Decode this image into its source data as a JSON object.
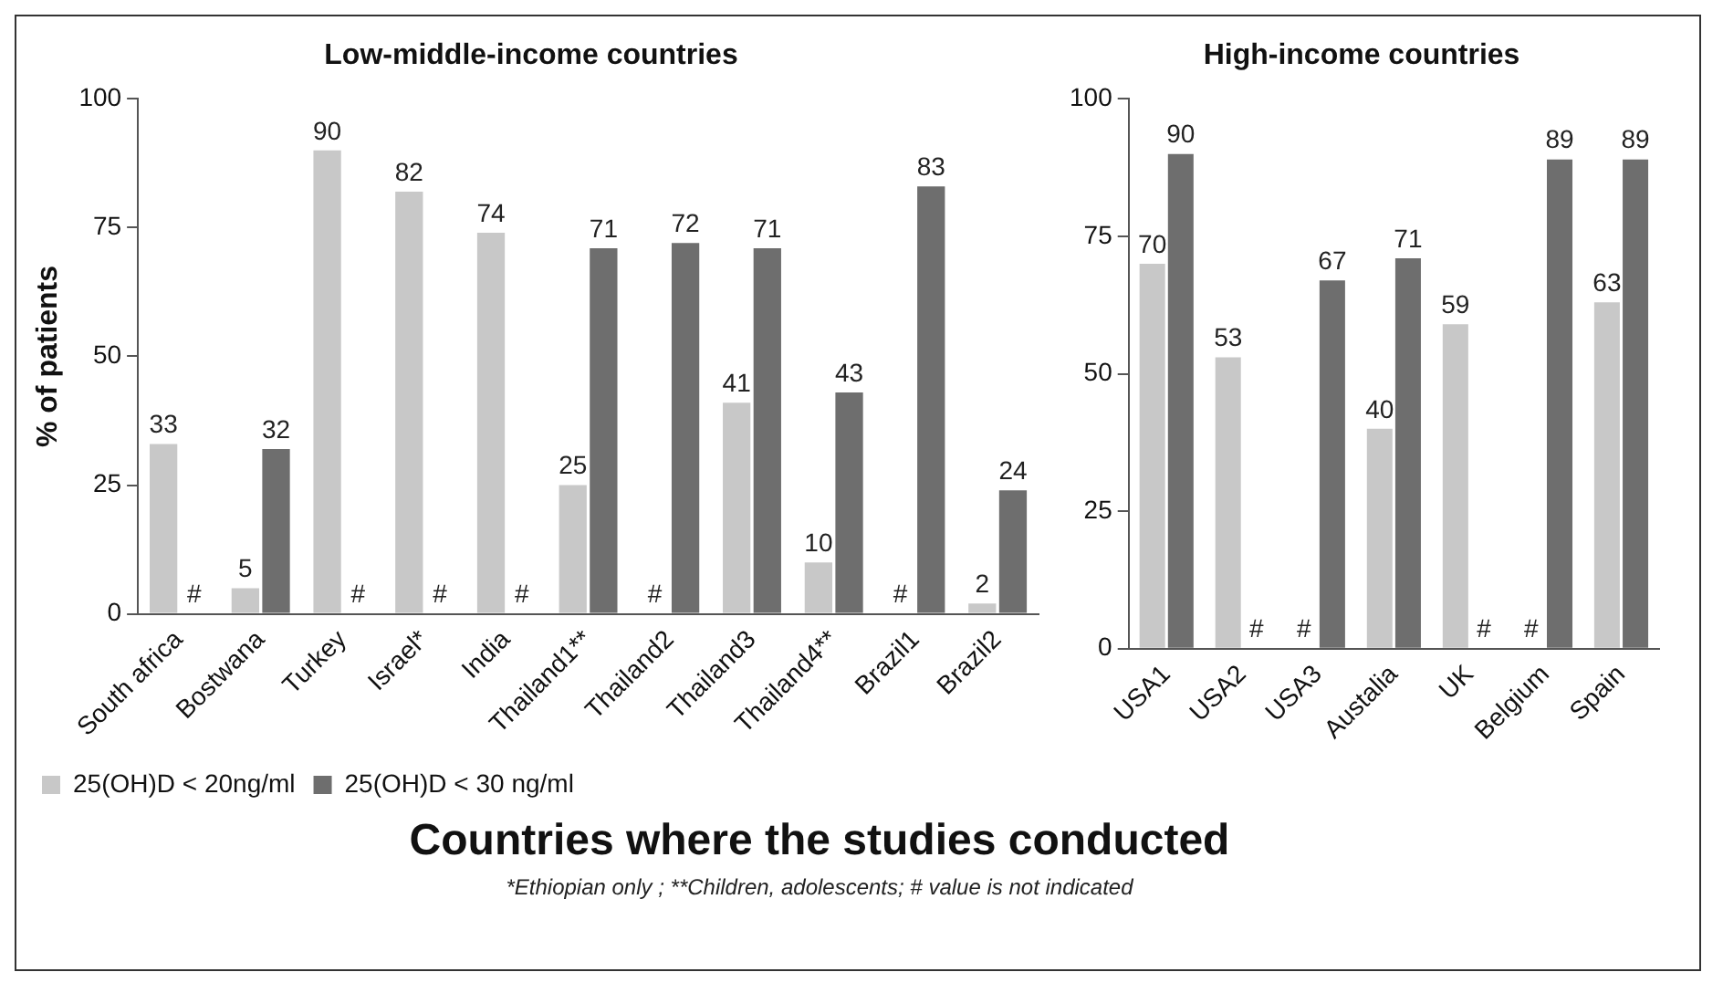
{
  "chart_data": [
    {
      "type": "bar",
      "title": "Low-middle-income countries",
      "ylabel": "% of patients",
      "categories": [
        "South africa",
        "Bostwana",
        "Turkey",
        "Israel*",
        "India",
        "Thailand1**",
        "Thailand2",
        "Thailand3",
        "Thailand4**",
        "Brazil1",
        "Brazil2"
      ],
      "series": [
        {
          "name": "25(OH)D < 20ng/ml",
          "color": "#c8c8c8",
          "values": [
            33,
            5,
            90,
            82,
            74,
            25,
            null,
            41,
            10,
            null,
            2
          ],
          "value_labels": [
            "33",
            "5",
            "90",
            "82",
            "74",
            "25",
            "#",
            "41",
            "10",
            "#",
            "2"
          ]
        },
        {
          "name": "25(OH)D < 30 ng/ml",
          "color": "#6e6e6e",
          "values": [
            null,
            32,
            null,
            null,
            null,
            71,
            72,
            71,
            43,
            83,
            24
          ],
          "value_labels": [
            "#",
            "32",
            "#",
            "#",
            "#",
            "71",
            "72",
            "71",
            "43",
            "83",
            "24"
          ]
        }
      ],
      "ylim": [
        0,
        100
      ],
      "yticks": [
        0,
        25,
        50,
        75,
        100
      ],
      "grid": false,
      "legend": "bottom",
      "annotations": [
        "Countries where the studies conducted",
        "*Ethiopian only ; **Children, adolescents; # value is not indicated"
      ]
    },
    {
      "type": "bar",
      "title": "High-income countries",
      "categories": [
        "USA1",
        "USA2",
        "USA3",
        "Austalia",
        "UK",
        "Belgium",
        "Spain"
      ],
      "series": [
        {
          "color": "#c8c8c8",
          "values": [
            70,
            53,
            null,
            40,
            59,
            null,
            63
          ],
          "value_labels": [
            "70",
            "53",
            "#",
            "40",
            "59",
            "#",
            "63"
          ]
        },
        {
          "color": "#6e6e6e",
          "values": [
            90,
            null,
            67,
            71,
            null,
            89,
            89
          ],
          "value_labels": [
            "90",
            "#",
            "67",
            "71",
            "#",
            "89",
            "89"
          ]
        }
      ],
      "ylim": [
        0,
        100
      ],
      "yticks": [
        0,
        25,
        50,
        75,
        100
      ],
      "grid": false,
      "legend": false
    }
  ]
}
